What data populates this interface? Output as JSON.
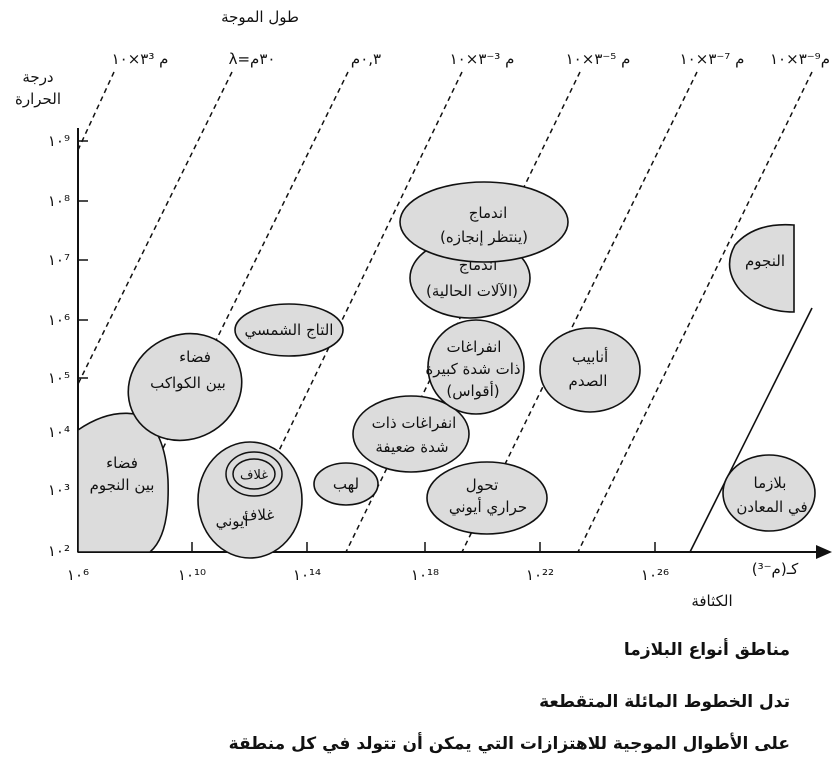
{
  "axes": {
    "wavelength_title": "طول الموجة",
    "temperature_title_1": "درجة",
    "temperature_title_2": "الحرارة",
    "density_label": "الكثافة",
    "density_unit": "كـ(م⁻³)"
  },
  "wavelength_labels": [
    "٣×١٠³ م",
    "λ=٣٠م",
    "٠,٣م",
    "٣×١٠⁻³ م",
    "٣×١٠⁻⁵ م",
    "٣×١٠⁻⁷ م",
    "٣×١٠⁻⁹م"
  ],
  "y_ticks": [
    "١٠²",
    "١٠³",
    "١٠⁴",
    "١٠⁵",
    "١٠⁶",
    "١٠⁷",
    "١٠⁸",
    "١٠⁹"
  ],
  "x_ticks": [
    "١٠⁶",
    "١٠¹⁰",
    "١٠¹⁴",
    "١٠¹⁸",
    "١٠²²",
    "١٠²⁶"
  ],
  "regions": {
    "interstellar_1": "فضاء",
    "interstellar_2": "بين النجوم",
    "interplanetary_1": "فضاء",
    "interplanetary_2": "بين الكواكب",
    "ionosphere_inner": "غلاف",
    "ionosphere_1": "غلاف",
    "ionosphere_2": "أيوني",
    "corona": "التاج الشمسي",
    "flame": "لهب",
    "low_density_1": "انفراغات ذات",
    "low_density_2": "شدة ضعيفة",
    "high_density_1": "انفراغات",
    "high_density_2": "ذات شدة كبيرة",
    "high_density_3": "(أقواس)",
    "thermionic_1": "تحول",
    "thermionic_2": "حراري أيوني",
    "fusion_current_1": "اندماج",
    "fusion_current_2": "(الآلات الحالية)",
    "fusion_future_1": "اندماج",
    "fusion_future_2": "(ينتظر إنجازه)",
    "shock_tubes_1": "أنابيب",
    "shock_tubes_2": "الصدم",
    "stars": "النجوم",
    "metals_1": "بلازما",
    "metals_2": "في المعادن"
  },
  "captions": {
    "title": "مناطق أنواع البلازما",
    "line_1": "تدل الخطوط المائلة المتقطعة",
    "line_2": "على الأطوال الموجية للاهتزازات التي يمكن أن تتولد في كل منطقة"
  }
}
